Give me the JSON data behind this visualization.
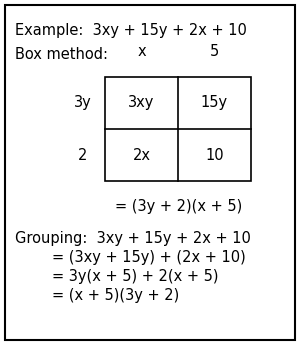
{
  "title_line": "Example:  3xy + 15y + 2x + 10",
  "box_method_label": "Box method:",
  "col_headers": [
    "x",
    "5"
  ],
  "row_headers": [
    "3y",
    "2"
  ],
  "cell_values": [
    [
      "3xy",
      "15y"
    ],
    [
      "2x",
      "10"
    ]
  ],
  "box_result": "= (3y + 2)(x + 5)",
  "grouping_label": "Grouping:  3xy + 15y + 2x + 10",
  "grouping_lines": [
    "= (3xy + 15y) + (2x + 10)",
    "= 3y(x + 5) + 2(x + 5)",
    "= (x + 5)(3y + 2)"
  ],
  "font_size": 10.5,
  "bg_color": "#ffffff",
  "border_color": "#000000",
  "text_color": "#000000"
}
